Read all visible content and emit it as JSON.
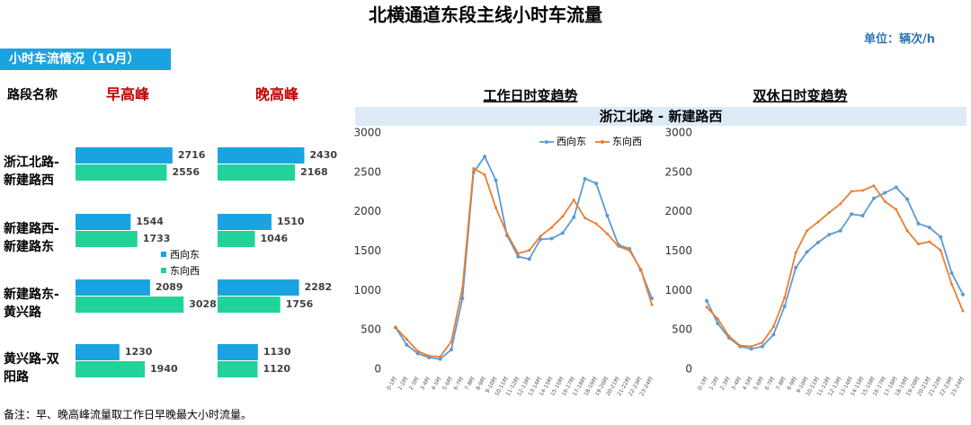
{
  "title": "北横通道东段主线小时车流量",
  "unit": "单位：辆次/h",
  "section": "小时车流情况（10月）",
  "footnote": "备注：早、晚高峰流量取工作日早晚最大小时流量。",
  "table": {
    "headers": [
      "路段名称",
      "早高峰",
      "晚高峰"
    ],
    "legend": [
      {
        "name": "西向东",
        "color": "#1aa3e0"
      },
      {
        "name": "东向西",
        "color": "#21d39b"
      }
    ],
    "rows": [
      {
        "lines": [
          "浙江北路-",
          "新建路西"
        ],
        "morning": [
          2716,
          2556
        ],
        "evening": [
          2430,
          2168
        ]
      },
      {
        "lines": [
          "新建路西-",
          "新建路东"
        ],
        "morning": [
          1544,
          1733
        ],
        "evening": [
          1510,
          1046
        ]
      },
      {
        "lines": [
          "新建路东-",
          "黄兴路"
        ],
        "morning": [
          2089,
          3028
        ],
        "evening": [
          2282,
          1756
        ]
      },
      {
        "lines": [
          "黄兴路-双",
          "阳路"
        ],
        "morning": [
          1230,
          1940
        ],
        "evening": [
          1130,
          1120
        ]
      }
    ]
  },
  "banner": "浙江北路 - 新建路西",
  "chart_data": [
    {
      "type": "line",
      "title": "工作日时变趋势",
      "categories": [
        "0-1时",
        "1-2时",
        "2-3时",
        "3-4时",
        "4-5时",
        "5-6时",
        "6-7时",
        "7-8时",
        "8-9时",
        "9-10时",
        "10-11时",
        "11-12时",
        "12-13时",
        "13-14时",
        "14-15时",
        "15-16时",
        "16-17时",
        "17-18时",
        "18-19时",
        "19-20时",
        "20-21时",
        "21-22时",
        "22-23时",
        "23-24时"
      ],
      "ylim": [
        0,
        3000
      ],
      "yticks": [
        0,
        500,
        1000,
        1500,
        2000,
        2500,
        3000
      ],
      "series": [
        {
          "name": "西向东",
          "color": "#5b9bd5",
          "values": [
            530,
            310,
            200,
            150,
            130,
            250,
            900,
            2500,
            2700,
            2400,
            1700,
            1430,
            1400,
            1650,
            1660,
            1730,
            1930,
            2420,
            2360,
            1950,
            1580,
            1530,
            1260,
            900
          ]
        },
        {
          "name": "东向西",
          "color": "#ed7d31",
          "values": [
            530,
            380,
            230,
            170,
            160,
            350,
            1030,
            2550,
            2470,
            2050,
            1720,
            1470,
            1510,
            1690,
            1800,
            1940,
            2150,
            1920,
            1850,
            1720,
            1560,
            1510,
            1270,
            820
          ]
        }
      ]
    },
    {
      "type": "line",
      "title": "双休日时变趋势",
      "categories": [
        "0-1时",
        "1-2时",
        "2-3时",
        "3-4时",
        "4-5时",
        "5-6时",
        "6-7时",
        "7-8时",
        "8-9时",
        "9-10时",
        "10-11时",
        "11-12时",
        "12-13时",
        "13-14时",
        "14-15时",
        "15-16时",
        "16-17时",
        "17-18时",
        "18-19时",
        "19-20时",
        "20-21时",
        "21-22时",
        "22-23时",
        "23-24时"
      ],
      "ylim": [
        0,
        3000
      ],
      "yticks": [
        0,
        500,
        1000,
        1500,
        2000,
        2500,
        3000
      ],
      "series": [
        {
          "color": "#5b9bd5",
          "values": [
            870,
            580,
            400,
            290,
            260,
            290,
            440,
            800,
            1290,
            1490,
            1610,
            1710,
            1760,
            1970,
            1950,
            2170,
            2240,
            2310,
            2160,
            1850,
            1800,
            1680,
            1220,
            950
          ]
        },
        {
          "color": "#ed7d31",
          "values": [
            790,
            640,
            420,
            300,
            290,
            340,
            540,
            910,
            1480,
            1760,
            1870,
            1990,
            2100,
            2260,
            2270,
            2330,
            2130,
            2030,
            1760,
            1590,
            1620,
            1510,
            1080,
            740
          ]
        }
      ]
    }
  ]
}
